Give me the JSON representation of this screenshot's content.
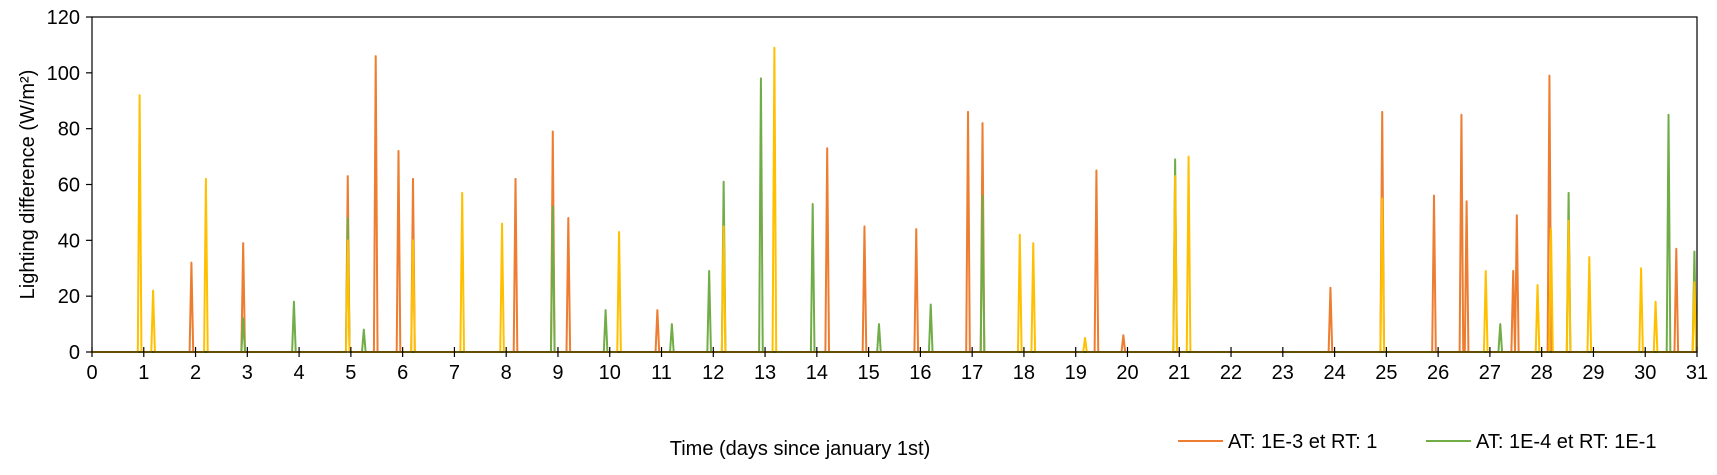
{
  "chart_data": {
    "type": "line",
    "title": "",
    "xlabel": "Time (days since january 1st)",
    "ylabel": "Lighting difference (W/m²)",
    "xlim": [
      0,
      31
    ],
    "ylim": [
      0,
      120
    ],
    "xticks": [
      0,
      1,
      2,
      3,
      4,
      5,
      6,
      7,
      8,
      9,
      10,
      11,
      12,
      13,
      14,
      15,
      16,
      17,
      18,
      19,
      20,
      21,
      22,
      23,
      24,
      25,
      26,
      27,
      28,
      29,
      30,
      31
    ],
    "yticks": [
      0,
      20,
      40,
      60,
      80,
      100,
      120
    ],
    "grid": false,
    "legend_position": "bottom-right",
    "series": [
      {
        "name": "AT: 1E-3 et RT: 1",
        "color": "#ED7D31",
        "peaks": [
          {
            "x": 1.92,
            "y": 32
          },
          {
            "x": 2.92,
            "y": 39
          },
          {
            "x": 4.94,
            "y": 63
          },
          {
            "x": 5.48,
            "y": 106
          },
          {
            "x": 5.92,
            "y": 72
          },
          {
            "x": 6.2,
            "y": 62
          },
          {
            "x": 8.18,
            "y": 62
          },
          {
            "x": 8.9,
            "y": 79
          },
          {
            "x": 9.2,
            "y": 48
          },
          {
            "x": 10.92,
            "y": 15
          },
          {
            "x": 14.2,
            "y": 73
          },
          {
            "x": 14.92,
            "y": 45
          },
          {
            "x": 15.92,
            "y": 44
          },
          {
            "x": 16.92,
            "y": 86
          },
          {
            "x": 17.2,
            "y": 82
          },
          {
            "x": 19.4,
            "y": 65
          },
          {
            "x": 19.92,
            "y": 6
          },
          {
            "x": 23.92,
            "y": 23
          },
          {
            "x": 24.92,
            "y": 86
          },
          {
            "x": 25.92,
            "y": 56
          },
          {
            "x": 26.45,
            "y": 85
          },
          {
            "x": 26.55,
            "y": 54
          },
          {
            "x": 27.45,
            "y": 29
          },
          {
            "x": 27.52,
            "y": 49
          },
          {
            "x": 28.15,
            "y": 99
          },
          {
            "x": 30.6,
            "y": 37
          }
        ]
      },
      {
        "name": "AT: 1E-4 et RT: 1E-1",
        "color": "#70AD47",
        "peaks": [
          {
            "x": 2.92,
            "y": 12
          },
          {
            "x": 3.9,
            "y": 18
          },
          {
            "x": 4.94,
            "y": 48
          },
          {
            "x": 5.25,
            "y": 8
          },
          {
            "x": 8.9,
            "y": 52
          },
          {
            "x": 9.92,
            "y": 15
          },
          {
            "x": 11.2,
            "y": 10
          },
          {
            "x": 11.92,
            "y": 29
          },
          {
            "x": 12.2,
            "y": 61
          },
          {
            "x": 12.92,
            "y": 98
          },
          {
            "x": 13.92,
            "y": 53
          },
          {
            "x": 15.2,
            "y": 10
          },
          {
            "x": 16.2,
            "y": 17
          },
          {
            "x": 17.2,
            "y": 56
          },
          {
            "x": 20.92,
            "y": 69
          },
          {
            "x": 27.2,
            "y": 10
          },
          {
            "x": 28.52,
            "y": 57
          },
          {
            "x": 30.45,
            "y": 85
          },
          {
            "x": 30.95,
            "y": 36
          }
        ]
      },
      {
        "color": "#FFC000",
        "peaks": [
          {
            "x": 0.92,
            "y": 92
          },
          {
            "x": 1.18,
            "y": 22
          },
          {
            "x": 2.2,
            "y": 62
          },
          {
            "x": 4.94,
            "y": 40
          },
          {
            "x": 6.2,
            "y": 40
          },
          {
            "x": 7.15,
            "y": 57
          },
          {
            "x": 7.92,
            "y": 46
          },
          {
            "x": 10.18,
            "y": 43
          },
          {
            "x": 12.2,
            "y": 45
          },
          {
            "x": 13.18,
            "y": 109
          },
          {
            "x": 17.92,
            "y": 42
          },
          {
            "x": 18.18,
            "y": 39
          },
          {
            "x": 19.18,
            "y": 5
          },
          {
            "x": 20.92,
            "y": 63
          },
          {
            "x": 21.18,
            "y": 70
          },
          {
            "x": 24.92,
            "y": 55
          },
          {
            "x": 26.92,
            "y": 29
          },
          {
            "x": 27.92,
            "y": 24
          },
          {
            "x": 28.18,
            "y": 44
          },
          {
            "x": 28.52,
            "y": 47
          },
          {
            "x": 28.92,
            "y": 34
          },
          {
            "x": 29.92,
            "y": 30
          },
          {
            "x": 30.2,
            "y": 18
          },
          {
            "x": 30.95,
            "y": 25
          }
        ]
      }
    ]
  }
}
